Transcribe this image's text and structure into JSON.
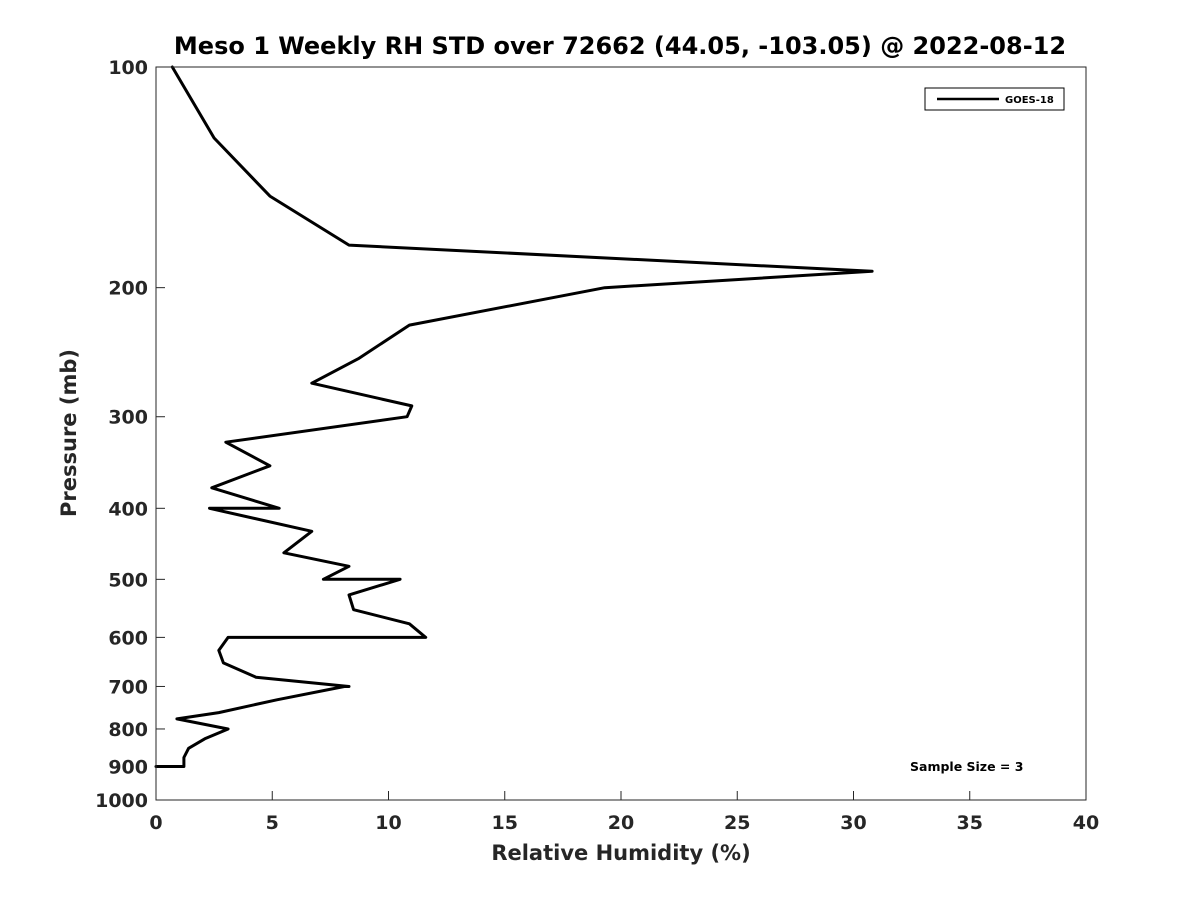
{
  "chart_data": {
    "type": "line",
    "title": "Meso 1 Weekly RH STD over 72662 (44.05, -103.05) @ 2022-08-12",
    "xlabel": "Relative Humidity (%)",
    "ylabel": "Pressure (mb)",
    "xlim": [
      0,
      40
    ],
    "ylim": [
      100,
      1000
    ],
    "y_scale": "log",
    "y_reversed": true,
    "x_ticks": [
      "0",
      "5",
      "10",
      "15",
      "20",
      "25",
      "30",
      "35",
      "40"
    ],
    "y_ticks": [
      "100",
      "200",
      "300",
      "400",
      "500",
      "600",
      "700",
      "800",
      "900",
      "1000"
    ],
    "grid": false,
    "legend_position": "top-right",
    "annotation": "Sample Size = 3",
    "series": [
      {
        "name": "GOES-18",
        "color": "#000000",
        "points": [
          {
            "rh": 0.7,
            "p": 100
          },
          {
            "rh": 2.5,
            "p": 125
          },
          {
            "rh": 4.9,
            "p": 150
          },
          {
            "rh": 8.3,
            "p": 175
          },
          {
            "rh": 30.8,
            "p": 190
          },
          {
            "rh": 19.3,
            "p": 200
          },
          {
            "rh": 10.9,
            "p": 225
          },
          {
            "rh": 8.7,
            "p": 250
          },
          {
            "rh": 6.7,
            "p": 270
          },
          {
            "rh": 11.0,
            "p": 290
          },
          {
            "rh": 10.8,
            "p": 300
          },
          {
            "rh": 3.0,
            "p": 325
          },
          {
            "rh": 4.9,
            "p": 350
          },
          {
            "rh": 2.4,
            "p": 375
          },
          {
            "rh": 5.3,
            "p": 400
          },
          {
            "rh": 2.3,
            "p": 400
          },
          {
            "rh": 6.7,
            "p": 430
          },
          {
            "rh": 5.5,
            "p": 460
          },
          {
            "rh": 8.3,
            "p": 480
          },
          {
            "rh": 7.2,
            "p": 500
          },
          {
            "rh": 10.5,
            "p": 500
          },
          {
            "rh": 8.3,
            "p": 525
          },
          {
            "rh": 8.5,
            "p": 550
          },
          {
            "rh": 10.9,
            "p": 575
          },
          {
            "rh": 11.6,
            "p": 600
          },
          {
            "rh": 3.1,
            "p": 600
          },
          {
            "rh": 2.7,
            "p": 625
          },
          {
            "rh": 2.9,
            "p": 650
          },
          {
            "rh": 4.3,
            "p": 680
          },
          {
            "rh": 8.3,
            "p": 700
          },
          {
            "rh": 8.1,
            "p": 700
          },
          {
            "rh": 5.2,
            "p": 730
          },
          {
            "rh": 2.7,
            "p": 760
          },
          {
            "rh": 0.9,
            "p": 775
          },
          {
            "rh": 3.1,
            "p": 800
          },
          {
            "rh": 2.1,
            "p": 825
          },
          {
            "rh": 1.4,
            "p": 850
          },
          {
            "rh": 1.2,
            "p": 875
          },
          {
            "rh": 1.2,
            "p": 900
          },
          {
            "rh": 0.0,
            "p": 900
          }
        ]
      }
    ]
  }
}
